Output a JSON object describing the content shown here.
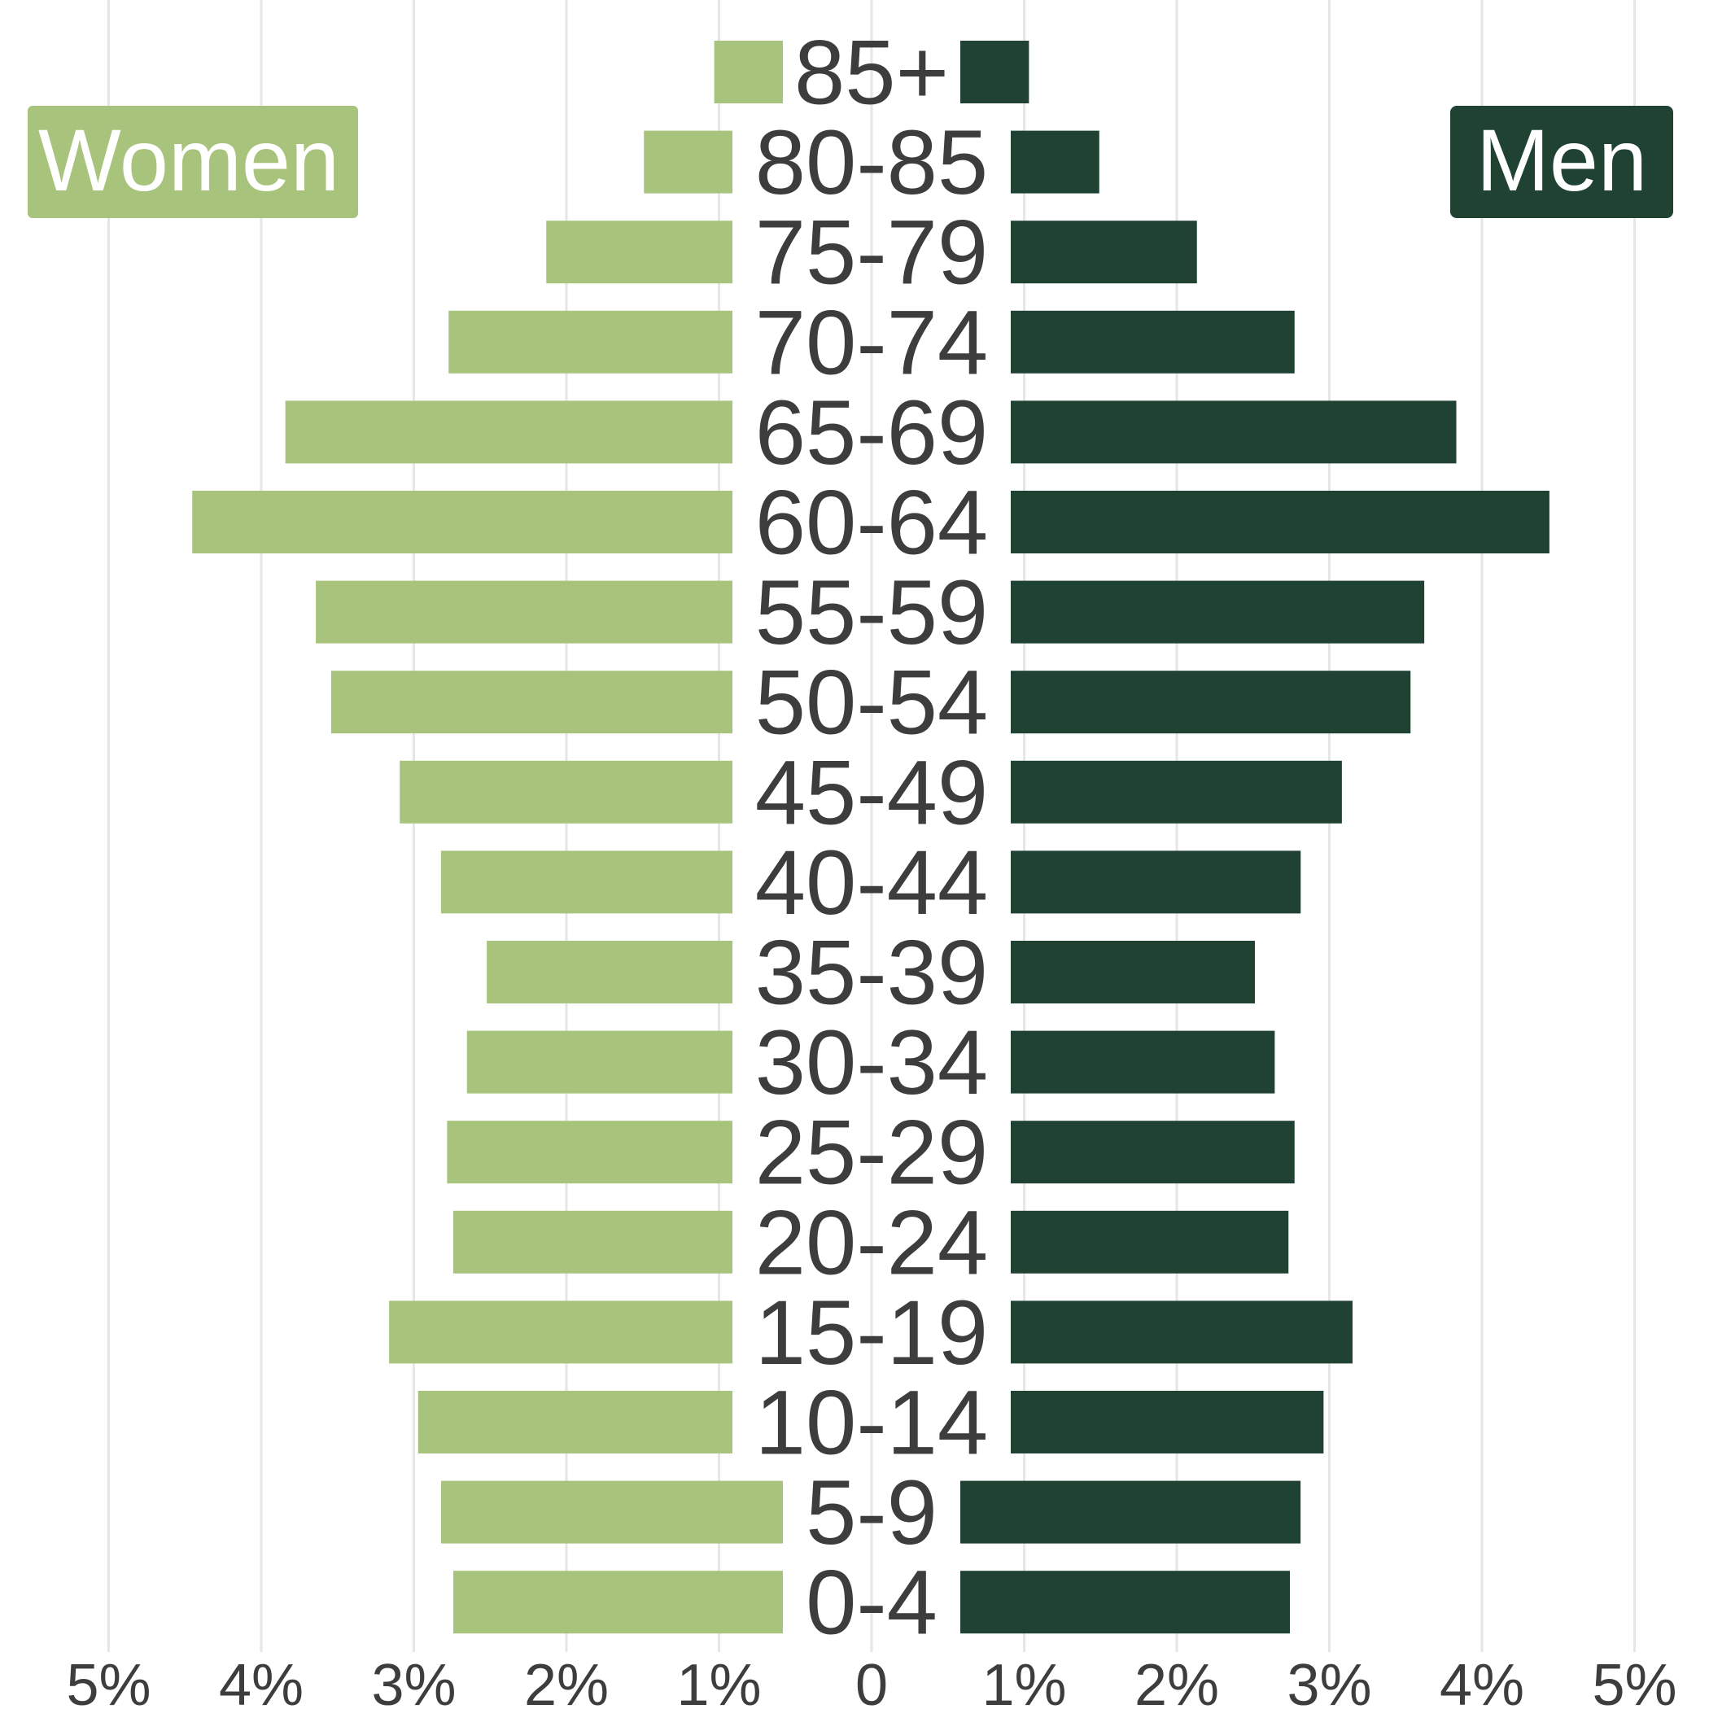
{
  "chart_data": {
    "type": "bar",
    "orientation": "horizontal-diverging",
    "categories": [
      "85+",
      "80-85",
      "75-79",
      "70-74",
      "65-69",
      "60-64",
      "55-59",
      "50-54",
      "45-49",
      "40-44",
      "35-39",
      "30-34",
      "25-29",
      "20-24",
      "15-19",
      "10-14",
      "5-9",
      "0-4"
    ],
    "series": [
      {
        "name": "Women",
        "color": "#a8c47c",
        "values": [
          0.45,
          0.58,
          1.22,
          1.86,
          2.93,
          3.54,
          2.73,
          2.63,
          2.18,
          1.91,
          1.61,
          1.74,
          1.87,
          1.83,
          2.25,
          2.06,
          2.24,
          2.16
        ]
      },
      {
        "name": "Men",
        "color": "#204233",
        "values": [
          0.45,
          0.58,
          1.22,
          1.86,
          2.92,
          3.53,
          2.71,
          2.62,
          2.17,
          1.9,
          1.6,
          1.73,
          1.86,
          1.82,
          2.24,
          2.05,
          2.23,
          2.16
        ]
      }
    ],
    "xlim": [
      -5,
      5
    ],
    "x_ticks": [
      -5,
      -4,
      -3,
      -2,
      -1,
      0,
      1,
      2,
      3,
      4,
      5
    ],
    "x_tick_labels": [
      "5%",
      "4%",
      "3%",
      "2%",
      "1%",
      "0",
      "1%",
      "2%",
      "3%",
      "4%",
      "5%"
    ],
    "grid": "vertical",
    "legend": {
      "women_label": "Women",
      "men_label": "Men",
      "placement": "top-left and top-right"
    }
  }
}
